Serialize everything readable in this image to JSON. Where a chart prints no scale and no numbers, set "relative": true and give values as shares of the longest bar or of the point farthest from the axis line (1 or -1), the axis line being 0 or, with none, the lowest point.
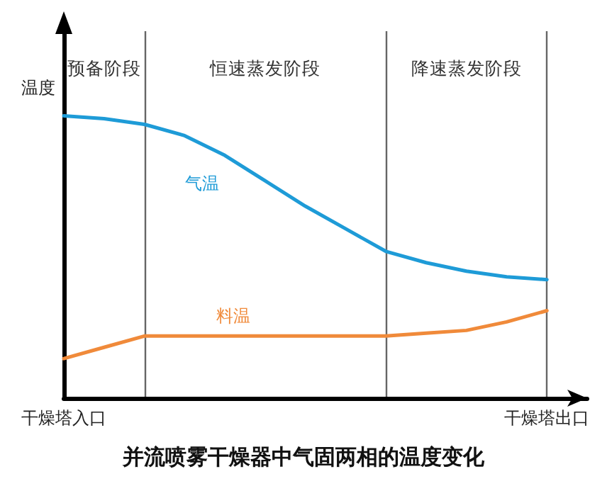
{
  "chart_data": {
    "type": "line",
    "relative": true,
    "title": "并流喷雾干燥器中气固两相的温度变化",
    "ylabel": "温度",
    "marker": "none",
    "line_style": "solid",
    "tick_labels": "x",
    "categories": [
      "干燥塔入口",
      null,
      null,
      null,
      null,
      null,
      null,
      null,
      null,
      null,
      null,
      null,
      "干燥塔出口",
      null
    ],
    "series": [
      {
        "name": "气温",
        "color": "#1e9bd7",
        "values": [
          1.0,
          0.99,
          0.97,
          0.93,
          0.86,
          0.77,
          0.68,
          0.6,
          0.52,
          0.48,
          0.45,
          0.43,
          0.42,
          null
        ]
      },
      {
        "name": "料温",
        "color": "#f08a3a",
        "values": [
          0.14,
          0.18,
          0.22,
          0.22,
          0.22,
          0.22,
          0.22,
          0.22,
          0.22,
          0.23,
          0.24,
          0.27,
          0.31,
          null
        ]
      }
    ],
    "grid": "x",
    "annotations": [
      "预备阶段",
      "恒速蒸发阶段",
      "降速蒸发阶段"
    ]
  }
}
